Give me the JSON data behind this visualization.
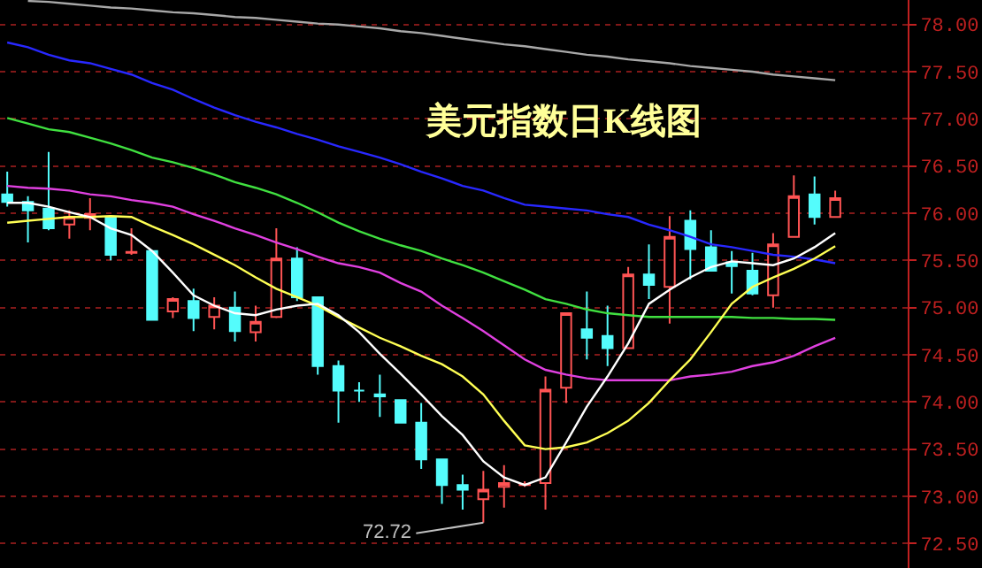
{
  "chart_data": {
    "type": "candlestick",
    "title": "美元指数日K线图",
    "categories": [
      null,
      null,
      null,
      null,
      null,
      null,
      null,
      null,
      null,
      null,
      null,
      null,
      null,
      null,
      null,
      null,
      null,
      null,
      null,
      null,
      null,
      null,
      null,
      null,
      null,
      null,
      null,
      null,
      null,
      null,
      null,
      null,
      null,
      null,
      null,
      null,
      null,
      null,
      null,
      null,
      null
    ],
    "ohlc": [
      [
        76.2,
        76.44,
        76.07,
        76.12
      ],
      [
        76.12,
        76.18,
        75.69,
        76.03
      ],
      [
        76.05,
        76.65,
        75.82,
        75.84
      ],
      [
        75.88,
        76.03,
        75.73,
        75.96
      ],
      [
        75.95,
        76.16,
        75.82,
        75.99
      ],
      [
        75.96,
        75.96,
        75.5,
        75.56
      ],
      [
        75.58,
        75.84,
        75.56,
        75.59
      ],
      [
        75.6,
        75.6,
        74.87,
        74.87
      ],
      [
        74.96,
        75.11,
        74.89,
        75.09
      ],
      [
        75.07,
        75.2,
        74.75,
        74.89
      ],
      [
        74.9,
        75.11,
        74.77,
        75.02
      ],
      [
        75.0,
        75.17,
        74.64,
        74.75
      ],
      [
        74.74,
        75.02,
        74.64,
        74.85
      ],
      [
        74.9,
        75.84,
        74.89,
        75.52
      ],
      [
        75.52,
        75.64,
        75.07,
        75.11
      ],
      [
        75.11,
        75.11,
        74.29,
        74.38
      ],
      [
        74.38,
        74.44,
        73.78,
        74.12
      ],
      [
        74.12,
        74.21,
        74.0,
        74.12
      ],
      [
        74.08,
        74.29,
        73.84,
        74.06
      ],
      [
        74.02,
        74.02,
        73.78,
        73.78
      ],
      [
        73.78,
        73.99,
        73.29,
        73.39
      ],
      [
        73.39,
        73.39,
        72.92,
        73.12
      ],
      [
        73.12,
        73.23,
        72.86,
        73.07
      ],
      [
        72.97,
        73.27,
        72.72,
        73.07
      ],
      [
        73.1,
        73.33,
        72.88,
        73.14
      ],
      [
        73.12,
        73.16,
        73.1,
        73.13
      ],
      [
        73.14,
        74.27,
        72.86,
        74.13
      ],
      [
        74.15,
        74.94,
        73.99,
        74.94
      ],
      [
        74.77,
        75.17,
        74.45,
        74.68
      ],
      [
        74.7,
        75.02,
        74.38,
        74.57
      ],
      [
        74.57,
        75.43,
        74.57,
        75.35
      ],
      [
        75.35,
        75.67,
        75.09,
        75.24
      ],
      [
        75.22,
        75.97,
        74.83,
        75.75
      ],
      [
        75.92,
        76.03,
        75.3,
        75.62
      ],
      [
        75.64,
        75.82,
        75.39,
        75.39
      ],
      [
        75.48,
        75.6,
        75.15,
        75.44
      ],
      [
        75.39,
        75.58,
        75.13,
        75.15
      ],
      [
        75.13,
        75.79,
        75.0,
        75.67
      ],
      [
        75.75,
        76.4,
        75.75,
        76.18
      ],
      [
        76.2,
        76.39,
        75.88,
        75.96
      ],
      [
        75.96,
        76.24,
        75.96,
        76.16
      ]
    ],
    "colors": [
      "#54fcfc",
      "#54fcfc",
      "#54fcfc",
      "#ff5454",
      "#ff5454",
      "#54fcfc",
      "#ff5454",
      "#54fcfc",
      "#ff5454",
      "#54fcfc",
      "#ff5454",
      "#54fcfc",
      "#ff5454",
      "#ff5454",
      "#54fcfc",
      "#54fcfc",
      "#54fcfc",
      "#54fcfc",
      "#54fcfc",
      "#54fcfc",
      "#54fcfc",
      "#54fcfc",
      "#54fcfc",
      "#ff5454",
      "#ff5454",
      "#ff5454",
      "#ff5454",
      "#ff5454",
      "#54fcfc",
      "#54fcfc",
      "#ff5454",
      "#54fcfc",
      "#ff5454",
      "#54fcfc",
      "#54fcfc",
      "#54fcfc",
      "#54fcfc",
      "#ff5454",
      "#ff5454",
      "#54fcfc",
      "#ff5454"
    ],
    "series": [
      {
        "type": "line",
        "color": "#a8a8a8",
        "values": [
          null,
          78.25,
          78.24,
          78.22,
          78.2,
          78.18,
          78.17,
          78.15,
          78.13,
          78.12,
          78.1,
          78.08,
          78.07,
          78.05,
          78.03,
          78.01,
          78.0,
          77.98,
          77.96,
          77.93,
          77.91,
          77.88,
          77.85,
          77.82,
          77.79,
          77.77,
          77.74,
          77.71,
          77.68,
          77.66,
          77.63,
          77.61,
          77.59,
          77.56,
          77.54,
          77.52,
          77.5,
          77.47,
          77.45,
          77.43,
          77.41
        ]
      },
      {
        "type": "line",
        "color": "#2828ff",
        "values": [
          77.81,
          77.76,
          77.68,
          77.62,
          77.59,
          77.53,
          77.47,
          77.38,
          77.31,
          77.21,
          77.12,
          77.04,
          76.97,
          76.91,
          76.84,
          76.78,
          76.71,
          76.65,
          76.59,
          76.52,
          76.44,
          76.37,
          76.29,
          76.24,
          76.16,
          76.09,
          76.07,
          76.05,
          76.03,
          75.99,
          75.96,
          75.88,
          75.82,
          75.75,
          75.67,
          75.64,
          75.6,
          75.56,
          75.54,
          75.51,
          75.47
        ]
      },
      {
        "type": "line",
        "color": "#40e040",
        "values": [
          77.01,
          76.95,
          76.89,
          76.86,
          76.8,
          76.74,
          76.67,
          76.59,
          76.54,
          76.48,
          76.41,
          76.33,
          76.27,
          76.2,
          76.11,
          76.01,
          75.9,
          75.81,
          75.73,
          75.66,
          75.6,
          75.52,
          75.45,
          75.37,
          75.28,
          75.19,
          75.09,
          75.04,
          74.98,
          74.94,
          74.92,
          74.9,
          74.9,
          74.9,
          74.9,
          74.9,
          74.89,
          74.89,
          74.88,
          74.88,
          74.87
        ]
      },
      {
        "type": "line",
        "color": "#e040e0",
        "values": [
          76.29,
          76.27,
          76.26,
          76.24,
          76.2,
          76.18,
          76.14,
          76.11,
          76.07,
          75.99,
          75.92,
          75.84,
          75.77,
          75.69,
          75.62,
          75.54,
          75.47,
          75.43,
          75.37,
          75.26,
          75.17,
          75.02,
          74.89,
          74.75,
          74.6,
          74.45,
          74.34,
          74.29,
          74.25,
          74.23,
          74.23,
          74.23,
          74.23,
          74.27,
          74.29,
          74.32,
          74.38,
          74.42,
          74.49,
          74.59,
          74.68
        ]
      },
      {
        "type": "line",
        "color": "#ffff54",
        "values": [
          75.9,
          75.92,
          75.94,
          75.96,
          75.96,
          75.97,
          75.96,
          75.86,
          75.77,
          75.67,
          75.56,
          75.45,
          75.32,
          75.2,
          75.11,
          75.02,
          74.9,
          74.79,
          74.68,
          74.59,
          74.49,
          74.4,
          74.27,
          74.08,
          73.8,
          73.54,
          73.5,
          73.52,
          73.57,
          73.67,
          73.8,
          73.99,
          74.23,
          74.45,
          74.74,
          75.04,
          75.22,
          75.32,
          75.41,
          75.52,
          75.65
        ]
      },
      {
        "type": "line",
        "color": "#ffffff",
        "values": [
          76.11,
          76.11,
          76.07,
          76.01,
          75.96,
          75.84,
          75.77,
          75.6,
          75.37,
          75.13,
          75.02,
          74.94,
          74.92,
          74.98,
          75.02,
          75.04,
          74.92,
          74.74,
          74.51,
          74.3,
          74.08,
          73.85,
          73.65,
          73.37,
          73.2,
          73.12,
          73.2,
          73.57,
          73.95,
          74.27,
          74.62,
          75.04,
          75.19,
          75.32,
          75.43,
          75.49,
          75.47,
          75.45,
          75.52,
          75.64,
          75.79
        ]
      }
    ],
    "annotations": [
      "72.72"
    ],
    "ylim": [
      72.24,
      78.26
    ],
    "yticks": [
      {
        "value": 72.5,
        "label": "72.50"
      },
      {
        "value": 73,
        "label": "73.00"
      },
      {
        "value": 73.5,
        "label": "73.50"
      },
      {
        "value": 74,
        "label": "74.00"
      },
      {
        "value": 74.5,
        "label": "74.50"
      },
      {
        "value": 75,
        "label": "75.00"
      },
      {
        "value": 75.5,
        "label": "75.50"
      },
      {
        "value": 76,
        "label": "76.00"
      },
      {
        "value": 76.5,
        "label": "76.50"
      },
      {
        "value": 77,
        "label": "77.00"
      },
      {
        "value": 77.5,
        "label": "77.50"
      },
      {
        "value": 78,
        "label": "78.00"
      }
    ],
    "grid": "y",
    "tick_labels": "y"
  }
}
